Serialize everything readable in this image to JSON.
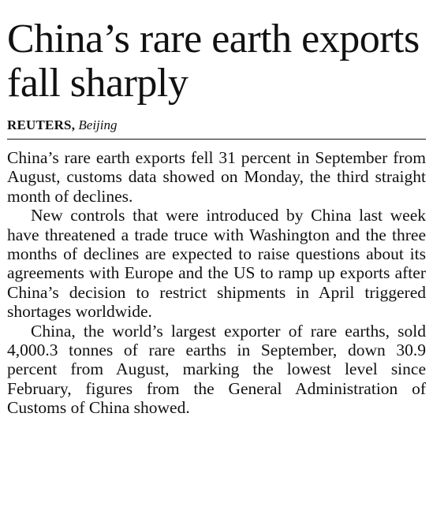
{
  "headline": "China’s rare earth exports fall sharply",
  "byline": {
    "agency": "REUTERS,",
    "place": "Beijing"
  },
  "paragraphs": [
    "China’s rare earth exports fell 31 percent in September from August, customs data showed on Monday, the third straight month of declines.",
    "New controls that were introduced by China last week have threatened a trade truce with Washington and the three months of declines are expected to raise questions about its agreements with Europe and the US to ramp up exports after China’s decision to restrict shipments in April triggered shortages worldwide.",
    "China, the world’s largest exporter of rare earths, sold 4,000.3 tonnes of rare earths in September, down 30.9 percent from August, marking the lowest level since February, figures from the General Administration of Customs of China showed."
  ]
}
